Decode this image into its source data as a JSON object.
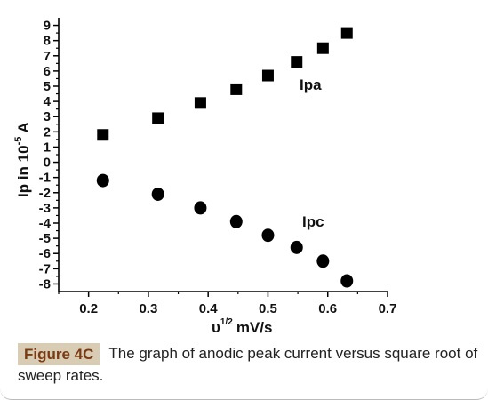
{
  "chart_data": {
    "type": "scatter",
    "xlabel_base": "υ",
    "xlabel_exp": "1/2",
    "xlabel_unit": "mV/s",
    "ylabel_base": "Ip in 10",
    "ylabel_exp": "-5",
    "ylabel_unit": "A",
    "xlim": [
      0.15,
      0.7
    ],
    "ylim": [
      -8.5,
      9.5
    ],
    "x_ticks": [
      0.2,
      0.3,
      0.4,
      0.5,
      0.6,
      0.7
    ],
    "x_tick_labels": [
      "0.2",
      "0.3",
      "0.4",
      "0.5",
      "0.6",
      "0.7"
    ],
    "y_ticks": [
      -8,
      -7,
      -6,
      -5,
      -4,
      -3,
      -2,
      -1,
      0,
      1,
      2,
      3,
      4,
      5,
      6,
      7,
      8,
      9
    ],
    "y_tick_labels": [
      "-8",
      "-7",
      "-6",
      "-5",
      "-4",
      "-3",
      "-2",
      "-1",
      "0",
      "1",
      "2",
      "3",
      "4",
      "5",
      "6",
      "7",
      "8",
      "9"
    ],
    "grid": false,
    "series": [
      {
        "name": "Ipa",
        "marker": "square",
        "color": "#000000",
        "x": [
          0.224,
          0.316,
          0.387,
          0.447,
          0.5,
          0.548,
          0.592,
          0.632
        ],
        "y": [
          1.8,
          2.9,
          3.9,
          4.8,
          5.7,
          6.6,
          7.5,
          8.5
        ]
      },
      {
        "name": "Ipc",
        "marker": "circle",
        "color": "#000000",
        "x": [
          0.224,
          0.316,
          0.387,
          0.447,
          0.5,
          0.548,
          0.592,
          0.632
        ],
        "y": [
          -1.2,
          -2.1,
          -3.0,
          -3.9,
          -4.8,
          -5.6,
          -6.5,
          -7.8
        ]
      }
    ]
  },
  "caption": {
    "label": "Figure 4C",
    "text": "The graph of anodic peak current versus square root of sweep rates."
  },
  "colors": {
    "badge_bg": "#d8cdb4",
    "badge_text": "#7a3a12"
  }
}
